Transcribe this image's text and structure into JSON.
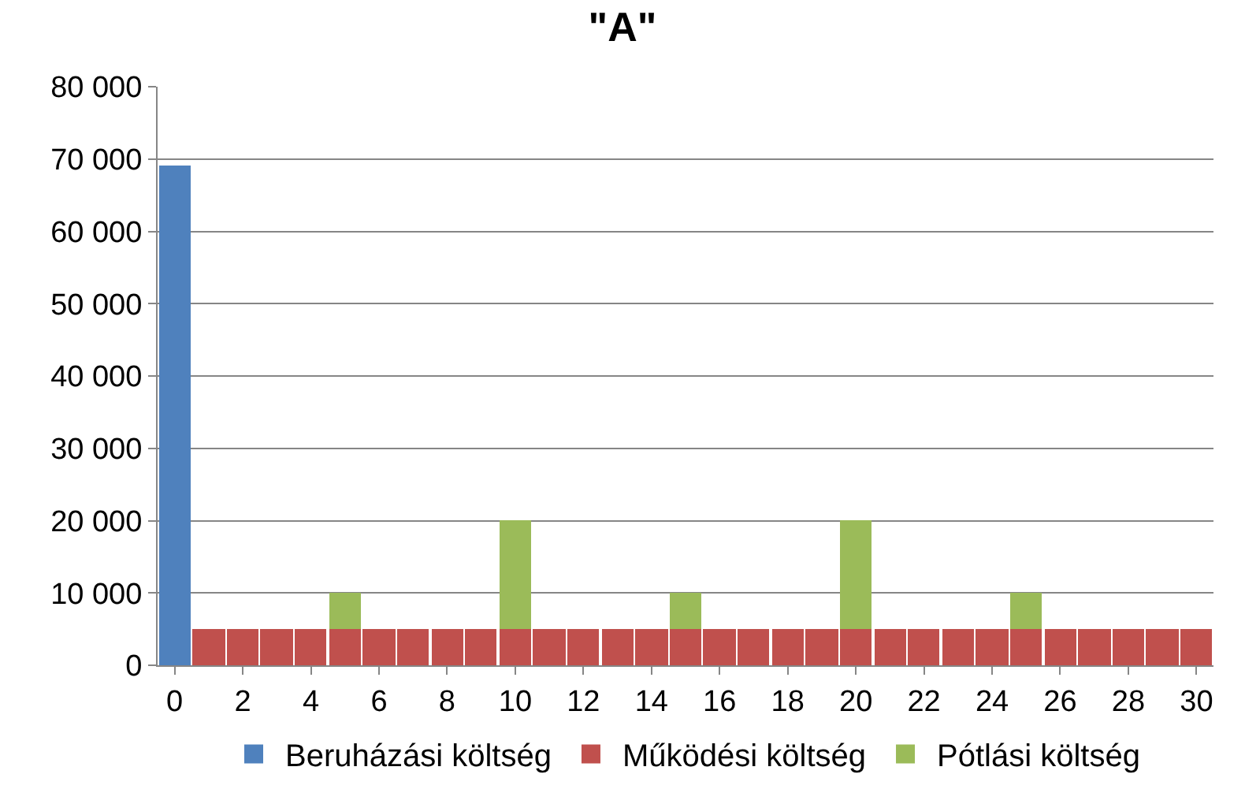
{
  "chart_data": {
    "type": "bar",
    "title": "\"A\"",
    "stacked": true,
    "x": [
      0,
      1,
      2,
      3,
      4,
      5,
      6,
      7,
      8,
      9,
      10,
      11,
      12,
      13,
      14,
      15,
      16,
      17,
      18,
      19,
      20,
      21,
      22,
      23,
      24,
      25,
      26,
      27,
      28,
      29,
      30
    ],
    "series": [
      {
        "name": "Beruházási költség",
        "color": "#4f81bd",
        "values": [
          69000,
          null,
          null,
          null,
          null,
          null,
          null,
          null,
          null,
          null,
          null,
          null,
          null,
          null,
          null,
          null,
          null,
          null,
          null,
          null,
          null,
          null,
          null,
          null,
          null,
          null,
          null,
          null,
          null,
          null,
          null
        ]
      },
      {
        "name": "Működési költség",
        "color": "#c0504d",
        "values": [
          null,
          5000,
          5000,
          5000,
          5000,
          5000,
          5000,
          5000,
          5000,
          5000,
          5000,
          5000,
          5000,
          5000,
          5000,
          5000,
          5000,
          5000,
          5000,
          5000,
          5000,
          5000,
          5000,
          5000,
          5000,
          5000,
          5000,
          5000,
          5000,
          5000,
          5000
        ]
      },
      {
        "name": "Pótlási költség",
        "color": "#9bbb59",
        "values": [
          null,
          null,
          null,
          null,
          null,
          5000,
          null,
          null,
          null,
          null,
          15000,
          null,
          null,
          null,
          null,
          5000,
          null,
          null,
          null,
          null,
          15000,
          null,
          null,
          null,
          null,
          5000,
          null,
          null,
          null,
          null,
          null
        ]
      }
    ],
    "xlim": [
      -0.5,
      30.5
    ],
    "xticks": [
      0,
      2,
      4,
      6,
      8,
      10,
      12,
      14,
      16,
      18,
      20,
      22,
      24,
      26,
      28,
      30
    ],
    "ylim": [
      0,
      80000
    ],
    "yticks": [
      {
        "value": 0,
        "label": "0"
      },
      {
        "value": 10000,
        "label": "10 000"
      },
      {
        "value": 20000,
        "label": "20 000"
      },
      {
        "value": 30000,
        "label": "30 000"
      },
      {
        "value": 40000,
        "label": "40 000"
      },
      {
        "value": 50000,
        "label": "50 000"
      },
      {
        "value": 60000,
        "label": "60 000"
      },
      {
        "value": 70000,
        "label": "70 000"
      },
      {
        "value": 80000,
        "label": "80 000"
      }
    ],
    "grid": "y",
    "legend": "bottom"
  }
}
